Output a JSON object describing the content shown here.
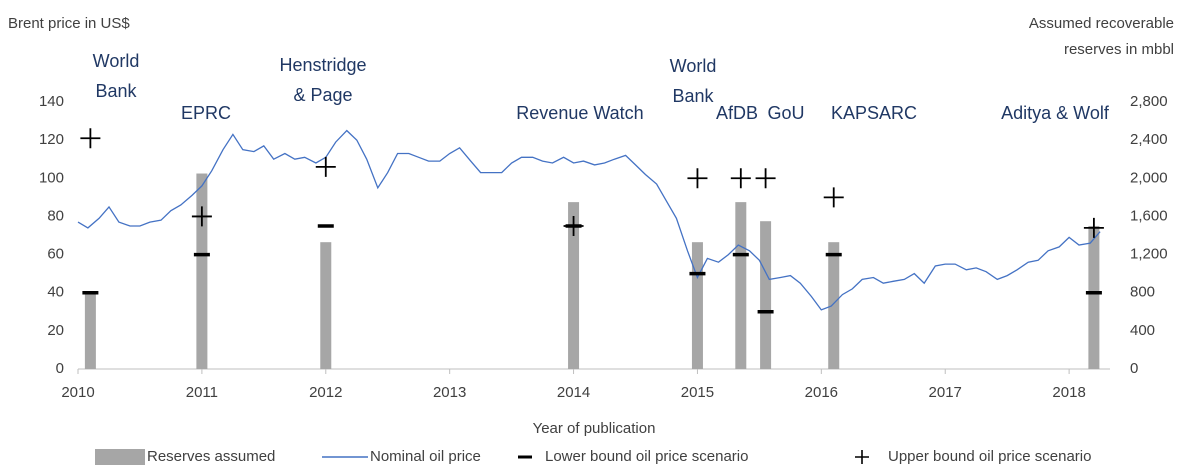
{
  "chart_data": {
    "type": "combo",
    "ylabel": "Brent price in US$",
    "y2label": [
      "Assumed recoverable",
      "reserves in mbbl"
    ],
    "xlabel": "Year of publication",
    "xlim": [
      2010,
      2018.33
    ],
    "xticks": [
      2010,
      2011,
      2012,
      2013,
      2014,
      2015,
      2016,
      2017,
      2018
    ],
    "ylim": [
      0,
      140
    ],
    "yticks": [
      0,
      20,
      40,
      60,
      80,
      100,
      120,
      140
    ],
    "y2lim": [
      0,
      2800
    ],
    "y2ticks": [
      0,
      400,
      800,
      {
        "value": 1200,
        "label": "1,200"
      },
      {
        "value": 1600,
        "label": "1,600"
      },
      {
        "value": 2000,
        "label": "2,000"
      },
      {
        "value": 2400,
        "label": "2,400"
      },
      {
        "value": 2800,
        "label": "2,800"
      }
    ],
    "studies": [
      [
        "World",
        "Bank"
      ],
      [
        "EPRC"
      ],
      [
        "Henstridge",
        "& Page"
      ],
      [
        "Revenue Watch"
      ],
      [
        "World",
        "Bank"
      ],
      [
        "AfDB"
      ],
      [
        "GoU"
      ],
      [
        "KAPSARC"
      ],
      [
        "Aditya & Wolf"
      ]
    ],
    "series": [
      {
        "name": "Reserves assumed",
        "type": "bar",
        "axis": "y2",
        "color": "#a6a6a6",
        "x": [
          2010.1,
          2011.0,
          2012.0,
          2014.0,
          2015.0,
          2015.35,
          2015.55,
          2016.1,
          2018.2
        ],
        "values": [
          800,
          2050,
          1330,
          1750,
          1330,
          1750,
          1550,
          1330,
          1500
        ]
      },
      {
        "name": "Nominal oil price",
        "type": "line",
        "color": "#4472c4",
        "x": [
          2010.0,
          2010.08,
          2010.17,
          2010.25,
          2010.33,
          2010.42,
          2010.5,
          2010.58,
          2010.67,
          2010.75,
          2010.83,
          2010.92,
          2011.0,
          2011.08,
          2011.17,
          2011.25,
          2011.33,
          2011.42,
          2011.5,
          2011.58,
          2011.67,
          2011.75,
          2011.83,
          2011.92,
          2012.0,
          2012.08,
          2012.17,
          2012.25,
          2012.33,
          2012.42,
          2012.5,
          2012.58,
          2012.67,
          2012.75,
          2012.83,
          2012.92,
          2013.0,
          2013.08,
          2013.17,
          2013.25,
          2013.33,
          2013.42,
          2013.5,
          2013.58,
          2013.67,
          2013.75,
          2013.83,
          2013.92,
          2014.0,
          2014.08,
          2014.17,
          2014.25,
          2014.33,
          2014.42,
          2014.5,
          2014.58,
          2014.67,
          2014.75,
          2014.83,
          2014.92,
          2015.0,
          2015.08,
          2015.17,
          2015.25,
          2015.33,
          2015.42,
          2015.5,
          2015.58,
          2015.67,
          2015.75,
          2015.83,
          2015.92,
          2016.0,
          2016.08,
          2016.17,
          2016.25,
          2016.33,
          2016.42,
          2016.5,
          2016.58,
          2016.67,
          2016.75,
          2016.83,
          2016.92,
          2017.0,
          2017.08,
          2017.17,
          2017.25,
          2017.33,
          2017.42,
          2017.5,
          2017.58,
          2017.67,
          2017.75,
          2017.83,
          2017.92,
          2018.0,
          2018.08,
          2018.17,
          2018.25
        ],
        "values": [
          77,
          74,
          79,
          85,
          77,
          75,
          75,
          77,
          78,
          83,
          86,
          91,
          96,
          104,
          115,
          123,
          115,
          114,
          117,
          110,
          113,
          110,
          111,
          108,
          111,
          119,
          125,
          120,
          110,
          95,
          103,
          113,
          113,
          111,
          109,
          109,
          113,
          116,
          109,
          103,
          103,
          103,
          108,
          111,
          111,
          109,
          108,
          111,
          108,
          109,
          107,
          108,
          110,
          112,
          107,
          102,
          97,
          88,
          79,
          62,
          48,
          58,
          56,
          60,
          65,
          62,
          57,
          47,
          48,
          49,
          45,
          38,
          31,
          33,
          39,
          42,
          47,
          48,
          45,
          46,
          47,
          50,
          45,
          54,
          55,
          55,
          52,
          53,
          51,
          47,
          49,
          52,
          56,
          57,
          62,
          64,
          69,
          65,
          66,
          72
        ]
      },
      {
        "name": "Lower bound oil price scenario",
        "type": "dash",
        "color": "#000000",
        "x": [
          2010.1,
          2011.0,
          2012.0,
          2014.0,
          2015.0,
          2015.35,
          2015.55,
          2016.1,
          2018.2
        ],
        "values": [
          40,
          60,
          75,
          75,
          50,
          60,
          30,
          60,
          40
        ]
      },
      {
        "name": "Upper bound oil price scenario",
        "type": "plus",
        "color": "#000000",
        "x": [
          2010.1,
          2011.0,
          2012.0,
          2014.0,
          2015.0,
          2015.35,
          2015.55,
          2016.1,
          2018.2
        ],
        "values": [
          121,
          80,
          106,
          75,
          100,
          100,
          100,
          90,
          74
        ]
      }
    ]
  }
}
